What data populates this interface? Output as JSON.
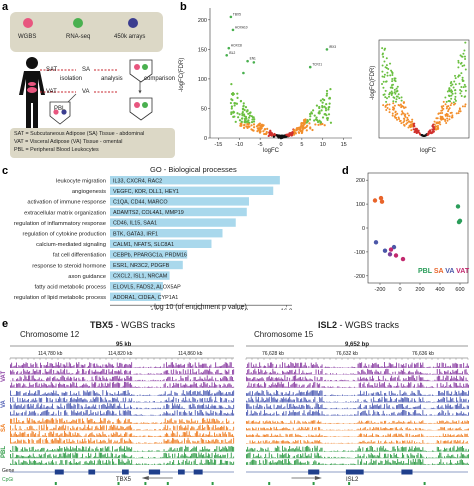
{
  "panels": {
    "a": "a",
    "b": "b",
    "c": "c",
    "d": "d",
    "e": "e"
  },
  "panel_a": {
    "legend": [
      {
        "label": "WGBS",
        "color": "#e8567f"
      },
      {
        "label": "RNA-seq",
        "color": "#49b04f"
      },
      {
        "label": "450k arrays",
        "color": "#3b3d8f"
      }
    ],
    "labels": {
      "sat": "SAT",
      "sa": "SA",
      "vat": "VAT",
      "va": "VA",
      "pbl": "PBL",
      "isolation": "isolation",
      "analysis": "analysis",
      "comparison": "comparison"
    },
    "definitions": [
      "SAT = Subcutaneous Adipose (SA) Tissue - abdominal",
      "VAT = Visceral Adipose (VA) Tissue - omental",
      "PBL = Peripheral Blood Leukocytes"
    ]
  },
  "panel_b": {
    "xlabel": "logFC",
    "ylabel": "-logFC(FDR)",
    "xticks": [
      "-15",
      "-10",
      "-5",
      "0",
      "5",
      "10",
      "15"
    ],
    "yticks": [
      "0",
      "50",
      "100",
      "150",
      "200"
    ],
    "inset_ylabel": "-logFC(FDR)",
    "inset_xlabel": "logFC",
    "gene_labels": [
      "TBX5",
      "HOXA10",
      "HOXC8",
      "IRX3",
      "ISL2",
      "EN1",
      "TCF21"
    ]
  },
  "panel_c": {
    "title": "GO - Biological processes",
    "xlabel": "- log 10 (of enrichment p value)",
    "xticks": [
      "4.0",
      "8.0",
      "12.0",
      "16.0"
    ],
    "xlim": [
      0,
      16.5
    ]
  },
  "chart_data": [
    {
      "type": "bar",
      "title": "GO - Biological processes",
      "xlabel": "- log 10 (of enrichment p value)",
      "xlim": [
        0,
        16.5
      ],
      "categories": [
        "leukocyte migration",
        "angiogenesis",
        "activation of immune response",
        "extracellular matrix organization",
        "regulation of inflammatory response",
        "regulation of cytokine production",
        "calcium-mediated signaling",
        "fat cell differentiation",
        "response to steroid hormone",
        "axon guidance",
        "fatty acid metabolic process",
        "regulation of lipid metabolic process"
      ],
      "values": [
        15.4,
        14.8,
        12.6,
        12.4,
        11.4,
        10.2,
        9.2,
        7.0,
        6.6,
        5.4,
        4.8,
        4.6
      ],
      "genes": [
        "IL33, CXCR4, RAC2",
        "VEGFC, KDR, DLL1, HEY1",
        "C1QA, CD44, MARCO",
        "ADAMTS2, COL4A1, MMP19",
        "CD46, IL15, SAA1",
        "BTK, GATA3, IRF1",
        "CALM1, NFATS, SLC8A1",
        "CEBPb, PPARGC1a, PRDM16",
        "ESR1, NR3C2, PDGFB",
        "CXCL2, ISL1, NRCAM",
        "ELOVL5, FADS2, ALOX5AP",
        "ADORA1, CIDEA, CYP1A1"
      ]
    },
    {
      "type": "scatter",
      "xticks": [
        "-200",
        "0",
        "200",
        "400",
        "600"
      ],
      "yticks": [
        "-200",
        "-100",
        "0",
        "100",
        "200"
      ],
      "x": [
        -250,
        -190,
        -180,
        580,
        600,
        590,
        -240,
        -150,
        -60,
        -40,
        30,
        -90,
        -100
      ],
      "y": [
        115,
        125,
        110,
        90,
        30,
        25,
        -60,
        -95,
        -80,
        -115,
        -130,
        -90,
        -110
      ],
      "point_colors": [
        "#e8642a",
        "#e8642a",
        "#e8642a",
        "#2a9d5a",
        "#2a9d5a",
        "#2a9d5a",
        "#4b57a8",
        "#4b57a8",
        "#4b57a8",
        "#c2296e",
        "#c2296e",
        "#c2296e",
        "#7a3f9a"
      ],
      "legend": [
        {
          "label": "PBL",
          "color": "#2a9d5a"
        },
        {
          "label": "SA",
          "color": "#e8642a"
        },
        {
          "label": "VA",
          "color": "#4b57a8"
        },
        {
          "label": "VAT",
          "color": "#c2296e"
        }
      ]
    }
  ],
  "panel_e": {
    "left": {
      "gene": "TBX5",
      "suffix": " - WGBS tracks",
      "chromosome": "Chromosome 12",
      "scale": "95 kb",
      "coords": [
        "114,780 kb",
        "114,820 kb",
        "114,860 kb"
      ],
      "gene_label": "TBX5"
    },
    "right": {
      "gene": "ISL2",
      "suffix": " - WGBS tracks",
      "chromosome": "Chromosome 15",
      "scale": "9,652 bp",
      "coords": [
        "76,628 kb",
        "76,632 kb",
        "76,636 kb"
      ],
      "gene_label": "ISL2"
    },
    "track_groups": [
      {
        "label": "VAT",
        "color": "#8b3fa3"
      },
      {
        "label": "VA",
        "color": "#4d5cb3"
      },
      {
        "label": "SA",
        "color": "#ee7d22"
      },
      {
        "label": "PBL",
        "color": "#2e9a45"
      }
    ],
    "gene_row": "Gene",
    "cpg_row": "CpGi"
  }
}
